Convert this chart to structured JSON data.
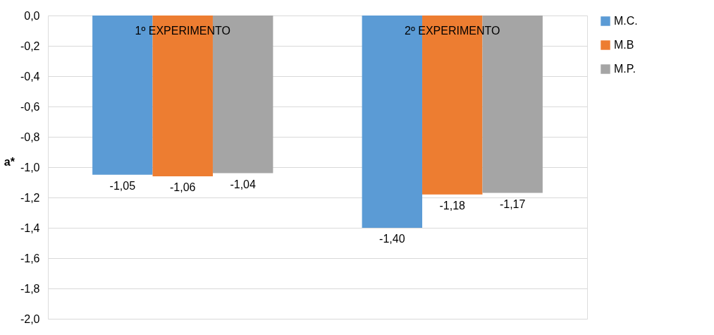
{
  "chart_data": {
    "type": "bar",
    "ylabel": "a*",
    "categories": [
      "1º  EXPERIMENTO",
      "2º  EXPERIMENTO"
    ],
    "series": [
      {
        "name": "M.C.",
        "color": "#5b9bd5",
        "values": [
          -1.05,
          -1.4
        ],
        "value_labels": [
          "-1,05",
          "-1,40"
        ]
      },
      {
        "name": "M.B",
        "color": "#ed7d31",
        "values": [
          -1.06,
          -1.18
        ],
        "value_labels": [
          "-1,06",
          "-1,18"
        ]
      },
      {
        "name": "M.P.",
        "color": "#a5a5a5",
        "values": [
          -1.04,
          -1.17
        ],
        "value_labels": [
          "-1,04",
          "-1,17"
        ]
      }
    ],
    "ylim": [
      -2.0,
      0.0
    ],
    "yticks": [
      {
        "value": 0.0,
        "label": "0,0"
      },
      {
        "value": -0.2,
        "label": "-0,2"
      },
      {
        "value": -0.4,
        "label": "-0,4"
      },
      {
        "value": -0.6,
        "label": "-0,6"
      },
      {
        "value": -0.8,
        "label": "-0,8"
      },
      {
        "value": -1.0,
        "label": "-1,0"
      },
      {
        "value": -1.2,
        "label": "-1,2"
      },
      {
        "value": -1.4,
        "label": "-1,4"
      },
      {
        "value": -1.6,
        "label": "-1,6"
      },
      {
        "value": -1.8,
        "label": "-1,8"
      },
      {
        "value": -2.0,
        "label": "-2,0"
      }
    ],
    "grid": "y",
    "legend": "right"
  }
}
